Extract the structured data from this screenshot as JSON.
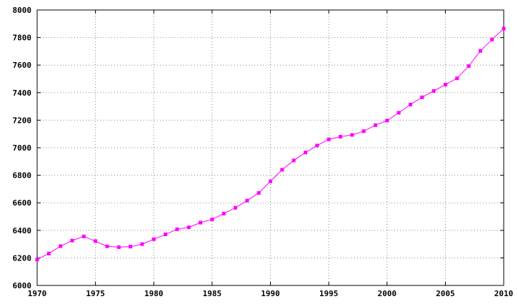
{
  "chart_data": {
    "type": "line",
    "title": "",
    "xlabel": "",
    "ylabel": "",
    "xlim": [
      1970,
      2010
    ],
    "ylim": [
      6000,
      8000
    ],
    "grid": true,
    "x_ticks": [
      1970,
      1975,
      1980,
      1985,
      1990,
      1995,
      2000,
      2005,
      2010
    ],
    "y_ticks": [
      6000,
      6200,
      6400,
      6600,
      6800,
      7000,
      7200,
      7400,
      7600,
      7800,
      8000
    ],
    "x_tick_labels": [
      "1970",
      "1975",
      "1980",
      "1985",
      "1990",
      "1995",
      "2000",
      "2005",
      "2010"
    ],
    "y_tick_labels": [
      "6000",
      "6200",
      "6400",
      "6600",
      "6800",
      "7000",
      "7200",
      "7400",
      "7600",
      "7800",
      "8000"
    ],
    "series": [
      {
        "color": "#ff00ff",
        "marker": "square",
        "x": [
          1970,
          1971,
          1972,
          1973,
          1974,
          1975,
          1976,
          1977,
          1978,
          1979,
          1980,
          1981,
          1982,
          1983,
          1984,
          1985,
          1986,
          1987,
          1988,
          1989,
          1990,
          1991,
          1992,
          1993,
          1994,
          1995,
          1996,
          1997,
          1998,
          1999,
          2000,
          2001,
          2002,
          2003,
          2004,
          2005,
          2006,
          2007,
          2008,
          2009,
          2010
        ],
        "y": [
          6188,
          6232,
          6285,
          6326,
          6356,
          6322,
          6284,
          6278,
          6282,
          6300,
          6336,
          6371,
          6408,
          6422,
          6456,
          6480,
          6522,
          6564,
          6616,
          6672,
          6756,
          6840,
          6908,
          6965,
          7016,
          7061,
          7080,
          7093,
          7120,
          7164,
          7197,
          7254,
          7313,
          7366,
          7412,
          7458,
          7504,
          7593,
          7703,
          7786,
          7865
        ]
      }
    ]
  }
}
